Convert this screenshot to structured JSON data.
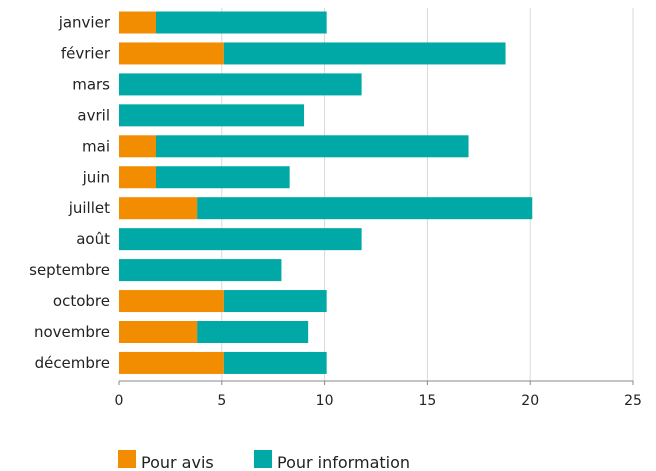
{
  "chart_data": {
    "type": "bar",
    "orientation": "horizontal",
    "stacked": true,
    "categories": [
      "janvier",
      "février",
      "mars",
      "avril",
      "mai",
      "juin",
      "juillet",
      "août",
      "septembre",
      "octobre",
      "novembre",
      "décembre"
    ],
    "series": [
      {
        "name": "Pour avis",
        "color": "#f28c00",
        "values": [
          1.8,
          5.1,
          0,
          0,
          1.8,
          1.8,
          3.8,
          0,
          0,
          5.1,
          3.8,
          5.1
        ]
      },
      {
        "name": "Pour information",
        "color": "#00a9a5",
        "values": [
          8.3,
          13.7,
          11.8,
          9.0,
          15.2,
          6.5,
          16.3,
          11.8,
          7.9,
          5.0,
          5.4,
          5.0
        ]
      }
    ],
    "xlim": [
      0,
      25
    ],
    "xticks": [
      "0",
      "5",
      "10",
      "15",
      "20",
      "25"
    ],
    "title": "",
    "xlabel": "",
    "ylabel": "",
    "grid": "vertical",
    "legend": "bottom-left"
  }
}
